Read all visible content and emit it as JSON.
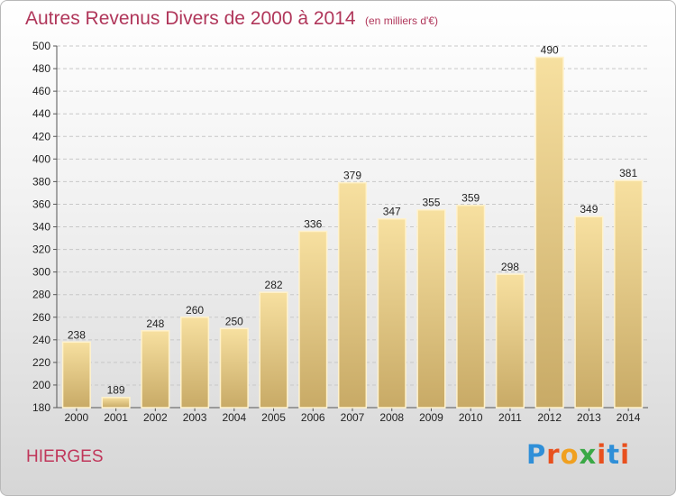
{
  "header": {
    "title": "Autres Revenus Divers de 2000 à 2014",
    "subtitle": "(en milliers d'€)"
  },
  "footer": {
    "place": "HIERGES",
    "logo_text": "Proxiti",
    "logo_colors": [
      "#2f8fd8",
      "#e8501e",
      "#f0a020",
      "#3aa845",
      "#e8501e",
      "#2f8fd8",
      "#e8501e"
    ]
  },
  "colors": {
    "bar_top": "#f7e0a0",
    "bar_bottom": "#c8aa66",
    "bar_edge": "#fff2cc",
    "title": "#b0365a",
    "grid": "#c8c8c8"
  },
  "chart_data": {
    "type": "bar",
    "title": "Autres Revenus Divers de 2000 à 2014",
    "subtitle": "(en milliers d'€)",
    "categories": [
      "2000",
      "2001",
      "2002",
      "2003",
      "2004",
      "2005",
      "2006",
      "2007",
      "2008",
      "2009",
      "2010",
      "2011",
      "2012",
      "2013",
      "2014"
    ],
    "values": [
      238,
      189,
      248,
      260,
      250,
      282,
      336,
      379,
      347,
      355,
      359,
      298,
      490,
      349,
      381
    ],
    "ylim": [
      180,
      500
    ],
    "ytick_step": 20,
    "grid": true,
    "legend": "none"
  }
}
